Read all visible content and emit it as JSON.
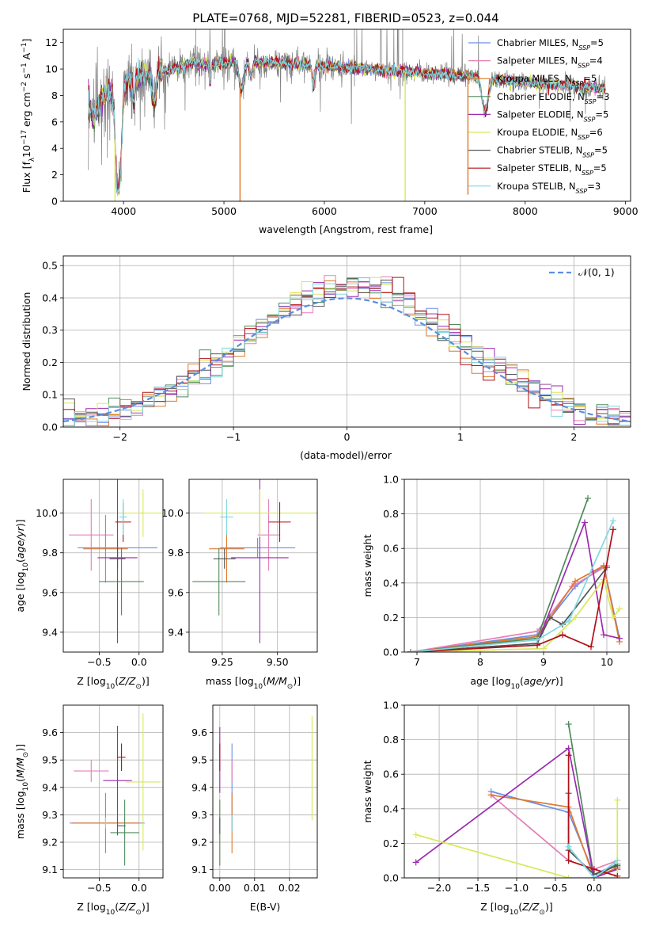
{
  "figure_title": "PLATE=0768, MJD=52281, FIBERID=0523, z=0.044",
  "models": [
    {
      "name": "Chabrier MILES",
      "sub": "SSP",
      "suffix": "=5",
      "color": "#6a8fe8"
    },
    {
      "name": "Salpeter MILES",
      "sub": "SSP",
      "suffix": "=4",
      "color": "#e57fb8"
    },
    {
      "name": "Kroupa MILES",
      "sub": "SSP",
      "suffix": "=5",
      "color": "#e0782a"
    },
    {
      "name": "Chabrier ELODIE",
      "sub": "SSP",
      "suffix": "=3",
      "color": "#4f8a5c"
    },
    {
      "name": "Salpeter ELODIE",
      "sub": "SSP",
      "suffix": "=5",
      "color": "#9b2ab0"
    },
    {
      "name": "Kroupa ELODIE",
      "sub": "SSP",
      "suffix": "=6",
      "color": "#d8e85a"
    },
    {
      "name": "Chabrier STELIB",
      "sub": "SSP",
      "suffix": "=5",
      "color": "#555555"
    },
    {
      "name": "Salpeter STELIB",
      "sub": "SSP",
      "suffix": "=5",
      "color": "#b01018"
    },
    {
      "name": "Kroupa STELIB",
      "sub": "SSP",
      "suffix": "=3",
      "color": "#7fd8e0"
    }
  ],
  "chart_data": [
    {
      "id": "spectrum",
      "type": "line",
      "xlabel": "wavelength [Angstrom, rest frame]",
      "ylabel": "Flux [f",
      "ylabel_full": "Flux [fλ10⁻¹⁷ erg cm⁻² s⁻¹ A⁻¹]",
      "xlim": [
        3400,
        9050
      ],
      "ylim": [
        0,
        13
      ],
      "xticks": [
        4000,
        5000,
        6000,
        7000,
        8000,
        9000
      ],
      "yticks": [
        0,
        2,
        4,
        6,
        8,
        10,
        12
      ],
      "data_color": "#808080",
      "spectrum_anchor_x": [
        3650,
        3700,
        3800,
        3950,
        4100,
        4300,
        4500,
        4700,
        4861,
        5000,
        5200,
        5500,
        5800,
        6000,
        6300,
        6563,
        6800,
        7000,
        7200,
        7400,
        7600,
        7800,
        8000,
        8200,
        8400,
        8600,
        8800
      ],
      "spectrum_anchor_y": [
        7.6,
        6.2,
        8.0,
        8.6,
        9.3,
        9.8,
        10.0,
        10.5,
        10.3,
        10.4,
        10.6,
        10.5,
        10.3,
        10.2,
        10.1,
        9.9,
        9.8,
        9.7,
        9.6,
        9.5,
        9.3,
        9.1,
        9.0,
        8.9,
        8.8,
        8.6,
        8.5
      ],
      "spectrum_dips": [
        {
          "x": 3934,
          "depth": 6.5,
          "width": 18
        },
        {
          "x": 3969,
          "depth": 5.5,
          "width": 18
        },
        {
          "x": 4102,
          "depth": 2.0,
          "width": 10
        },
        {
          "x": 4304,
          "depth": 2.5,
          "width": 20
        },
        {
          "x": 4861,
          "depth": 1.5,
          "width": 8
        },
        {
          "x": 5175,
          "depth": 2.0,
          "width": 25
        },
        {
          "x": 5270,
          "depth": 1.0,
          "width": 15
        },
        {
          "x": 5890,
          "depth": 1.5,
          "width": 12
        },
        {
          "x": 7600,
          "depth": 2.5,
          "width": 30
        }
      ],
      "emission_lines": [
        3727,
        4861,
        5007,
        6563,
        6730
      ],
      "model_spikes": [
        {
          "x": 3915,
          "model": 5,
          "to": 0
        },
        {
          "x": 5160,
          "model": 2,
          "to": 0
        },
        {
          "x": 6805,
          "model": 5,
          "to": 0
        },
        {
          "x": 7430,
          "model": 2,
          "to": 0.5
        }
      ]
    },
    {
      "id": "residuals",
      "type": "step",
      "xlabel": "(data-model)/error",
      "ylabel": "Normed distribution",
      "xlim": [
        -2.5,
        2.5
      ],
      "ylim": [
        0,
        0.53
      ],
      "xticks": [
        -2,
        -1,
        0,
        1,
        2
      ],
      "yticks": [
        0.0,
        0.1,
        0.2,
        0.3,
        0.4,
        0.5
      ],
      "bin_width": 0.1,
      "gaussian_label": "𝒩(0, 1)",
      "gaussian_color": "#5b8ee0"
    },
    {
      "id": "age-vs-Z",
      "type": "errorbar",
      "xlabel": "Z [log",
      "xlabel_full": "Z [log₁₀(Z/Z☉)]",
      "ylabel": "age  [log",
      "ylabel_full": "age [log₁₀(age/yr)]",
      "xlim": [
        -0.95,
        0.3
      ],
      "ylim": [
        9.3,
        10.17
      ],
      "xticks": [
        -0.5,
        0.0
      ],
      "yticks": [
        9.4,
        9.6,
        9.8,
        10.0
      ],
      "points": [
        {
          "model": 0,
          "x": -0.27,
          "xerr": 0.5,
          "y": 9.825,
          "yerr": 0.05
        },
        {
          "model": 1,
          "x": -0.6,
          "xerr": 0.28,
          "y": 9.89,
          "yerr": 0.18
        },
        {
          "model": 2,
          "x": -0.42,
          "xerr": 0.28,
          "y": 9.82,
          "yerr": 0.17
        },
        {
          "model": 3,
          "x": -0.22,
          "xerr": 0.28,
          "y": 9.655,
          "yerr": 0.17
        },
        {
          "model": 4,
          "x": -0.27,
          "xerr": 0.25,
          "y": 9.775,
          "yerr": 0.43
        },
        {
          "model": 5,
          "x": 0.05,
          "xerr": 0.28,
          "y": 10.0,
          "yerr": 0.12
        },
        {
          "model": 6,
          "x": -0.27,
          "xerr": 0.1,
          "y": 9.77,
          "yerr": 0.05
        },
        {
          "model": 7,
          "x": -0.2,
          "xerr": 0.1,
          "y": 9.955,
          "yerr": 0.1
        },
        {
          "model": 8,
          "x": -0.2,
          "xerr": 0.05,
          "y": 9.98,
          "yerr": 0.09
        }
      ]
    },
    {
      "id": "age-vs-mass",
      "type": "errorbar",
      "xlabel": "mass [log",
      "xlabel_full": "mass [log₁₀(M/M☉)]",
      "xlim": [
        9.1,
        9.68
      ],
      "ylim": [
        9.3,
        10.17
      ],
      "xticks": [
        9.25,
        9.5
      ],
      "yticks": [
        9.4,
        9.6,
        9.8,
        10.0
      ],
      "points": [
        {
          "model": 0,
          "x": 9.41,
          "xerr": 0.17,
          "y": 9.825,
          "yerr": 0.05
        },
        {
          "model": 1,
          "x": 9.46,
          "xerr": 0.05,
          "y": 9.89,
          "yerr": 0.18
        },
        {
          "model": 2,
          "x": 9.27,
          "xerr": 0.08,
          "y": 9.82,
          "yerr": 0.17
        },
        {
          "model": 3,
          "x": 9.235,
          "xerr": 0.12,
          "y": 9.655,
          "yerr": 0.17
        },
        {
          "model": 4,
          "x": 9.42,
          "xerr": 0.13,
          "y": 9.775,
          "yerr": 0.43
        },
        {
          "model": 5,
          "x": 9.42,
          "xerr": 0.25,
          "y": 10.0,
          "yerr": 0.12
        },
        {
          "model": 6,
          "x": 9.26,
          "xerr": 0.05,
          "y": 9.77,
          "yerr": 0.05
        },
        {
          "model": 7,
          "x": 9.51,
          "xerr": 0.05,
          "y": 9.955,
          "yerr": 0.1
        },
        {
          "model": 8,
          "x": 9.27,
          "xerr": 0.03,
          "y": 9.98,
          "yerr": 0.09
        }
      ]
    },
    {
      "id": "weight-vs-age",
      "type": "line",
      "xlabel": "age  [log",
      "xlabel_full": "age [log₁₀(age/yr)]",
      "ylabel": "mass weight",
      "xlim": [
        6.8,
        10.35
      ],
      "ylim": [
        0,
        1.0
      ],
      "xticks": [
        7,
        8,
        9,
        10
      ],
      "yticks": [
        0.0,
        0.2,
        0.4,
        0.6,
        0.8,
        1.0
      ],
      "series": [
        {
          "model": 0,
          "x": [
            6.9,
            8.9,
            9.5,
            9.95,
            10.2
          ],
          "y": [
            0.0,
            0.1,
            0.38,
            0.5,
            0.08
          ]
        },
        {
          "model": 1,
          "x": [
            6.9,
            8.9,
            9.45,
            10.0
          ],
          "y": [
            0.0,
            0.12,
            0.38,
            0.5
          ]
        },
        {
          "model": 2,
          "x": [
            6.9,
            8.9,
            9.5,
            9.95,
            10.2
          ],
          "y": [
            0.0,
            0.09,
            0.41,
            0.5,
            0.06
          ]
        },
        {
          "model": 3,
          "x": [
            6.9,
            8.9,
            9.7
          ],
          "y": [
            0.0,
            0.08,
            0.89
          ]
        },
        {
          "model": 4,
          "x": [
            6.9,
            8.9,
            9.65,
            9.95,
            10.2
          ],
          "y": [
            0.0,
            0.05,
            0.75,
            0.1,
            0.08
          ]
        },
        {
          "model": 5,
          "x": [
            6.9,
            9.0,
            9.5,
            9.95,
            10.1,
            10.2
          ],
          "y": [
            0.0,
            0.02,
            0.2,
            0.42,
            0.2,
            0.25
          ]
        },
        {
          "model": 6,
          "x": [
            6.9,
            8.9,
            9.1,
            9.3,
            10.0
          ],
          "y": [
            0.0,
            0.05,
            0.2,
            0.16,
            0.49
          ]
        },
        {
          "model": 7,
          "x": [
            6.9,
            8.9,
            9.3,
            9.75,
            10.1
          ],
          "y": [
            0.0,
            0.04,
            0.1,
            0.03,
            0.71
          ]
        },
        {
          "model": 8,
          "x": [
            6.9,
            8.9,
            9.4,
            10.1
          ],
          "y": [
            0.0,
            0.07,
            0.18,
            0.76
          ]
        }
      ]
    },
    {
      "id": "mass-vs-Z",
      "type": "errorbar",
      "xlabel": "Z [log",
      "xlabel_full": "Z [log₁₀(Z/Z☉)]",
      "ylabel": "mass [log",
      "ylabel_full": "mass [log₁₀(M/M☉)]",
      "xlim": [
        -0.95,
        0.3
      ],
      "ylim": [
        9.07,
        9.7
      ],
      "xticks": [
        -0.5,
        0.0
      ],
      "yticks": [
        9.1,
        9.2,
        9.3,
        9.4,
        9.5,
        9.6
      ],
      "points": [
        {
          "model": 0,
          "x": -0.4,
          "xerr": 0.47,
          "y": 9.27,
          "yerr": 0.0
        },
        {
          "model": 1,
          "x": -0.6,
          "xerr": 0.22,
          "y": 9.46,
          "yerr": 0.04
        },
        {
          "model": 2,
          "x": -0.42,
          "xerr": 0.42,
          "y": 9.27,
          "yerr": 0.11
        },
        {
          "model": 3,
          "x": -0.18,
          "xerr": 0.18,
          "y": 9.235,
          "yerr": 0.12
        },
        {
          "model": 4,
          "x": -0.27,
          "xerr": 0.18,
          "y": 9.425,
          "yerr": 0.2
        },
        {
          "model": 5,
          "x": 0.05,
          "xerr": 0.22,
          "y": 9.42,
          "yerr": 0.25
        },
        {
          "model": 6,
          "x": -0.22,
          "xerr": 0.05,
          "y": 9.26,
          "yerr": 0.0
        },
        {
          "model": 7,
          "x": -0.22,
          "xerr": 0.05,
          "y": 9.51,
          "yerr": 0.05
        },
        {
          "model": 8,
          "x": -0.42,
          "xerr": 0.01,
          "y": 9.27,
          "yerr": 0.02
        }
      ]
    },
    {
      "id": "mass-vs-EBV",
      "type": "errorbar",
      "xlabel": "E(B-V)",
      "xlim": [
        -0.002,
        0.028
      ],
      "ylim": [
        9.07,
        9.7
      ],
      "xticks": [
        0.0,
        0.01,
        0.02
      ],
      "yticks": [
        9.1,
        9.2,
        9.3,
        9.4,
        9.5,
        9.6
      ],
      "points": [
        {
          "model": 0,
          "x": 0.0035,
          "xerr": 0.0,
          "y": 9.4,
          "yerr": 0.16
        },
        {
          "model": 1,
          "x": 0.0035,
          "xerr": 0.0,
          "y": 9.46,
          "yerr": 0.04
        },
        {
          "model": 2,
          "x": 0.0035,
          "xerr": 0.0,
          "y": 9.27,
          "yerr": 0.11
        },
        {
          "model": 3,
          "x": 0.0,
          "xerr": 0.0,
          "y": 9.235,
          "yerr": 0.12
        },
        {
          "model": 4,
          "x": 0.0,
          "xerr": 0.0,
          "y": 9.5,
          "yerr": 0.12
        },
        {
          "model": 5,
          "x": 0.0265,
          "xerr": 0.0,
          "y": 9.47,
          "yerr": 0.19
        },
        {
          "model": 6,
          "x": 0.0,
          "xerr": 0.0,
          "y": 9.26,
          "yerr": 0.03
        },
        {
          "model": 7,
          "x": 0.0,
          "xerr": 0.0,
          "y": 9.51,
          "yerr": 0.05
        },
        {
          "model": 8,
          "x": 0.0035,
          "xerr": 0.0,
          "y": 9.27,
          "yerr": 0.03
        }
      ]
    },
    {
      "id": "weight-vs-Z",
      "type": "line",
      "xlabel": "Z [log",
      "xlabel_full": "Z [log₁₀(Z/Z☉)]",
      "ylabel": "mass weight",
      "xlim": [
        -2.45,
        0.45
      ],
      "ylim": [
        0,
        1.0
      ],
      "xticks": [
        -2.0,
        -1.5,
        -1.0,
        -0.5,
        0.0
      ],
      "yticks": [
        0.0,
        0.2,
        0.4,
        0.6,
        0.8,
        1.0
      ],
      "series": [
        {
          "model": 0,
          "x": [
            -1.33,
            -0.33,
            0.0,
            0.3
          ],
          "y": [
            0.5,
            0.38,
            0.02,
            0.08
          ]
        },
        {
          "model": 1,
          "x": [
            -1.33,
            -0.33,
            0.0,
            0.3
          ],
          "y": [
            0.48,
            0.1,
            0.05,
            0.1
          ]
        },
        {
          "model": 2,
          "x": [
            -1.33,
            -0.33,
            0.0,
            0.3
          ],
          "y": [
            0.48,
            0.41,
            0.0,
            0.06
          ]
        },
        {
          "model": 3,
          "x": [
            -0.33,
            0.0,
            0.3
          ],
          "y": [
            0.89,
            0.0,
            0.08
          ]
        },
        {
          "model": 4,
          "x": [
            -2.3,
            -0.33,
            0.0,
            0.3
          ],
          "y": [
            0.09,
            0.75,
            0.0,
            0.05
          ]
        },
        {
          "model": 5,
          "x": [
            -2.3,
            -0.33,
            0.3,
            0.3
          ],
          "y": [
            0.25,
            0.0,
            0.0,
            0.45
          ]
        },
        {
          "model": 6,
          "x": [
            -0.33,
            -0.33,
            0.0,
            0.3
          ],
          "y": [
            0.49,
            0.16,
            0.02,
            0.07
          ]
        },
        {
          "model": 7,
          "x": [
            -0.33,
            -0.33,
            0.0,
            0.3
          ],
          "y": [
            0.71,
            0.1,
            0.05,
            0.01
          ]
        },
        {
          "model": 8,
          "x": [
            -0.33,
            0.0,
            0.3
          ],
          "y": [
            0.18,
            0.0,
            0.1
          ]
        }
      ]
    }
  ]
}
